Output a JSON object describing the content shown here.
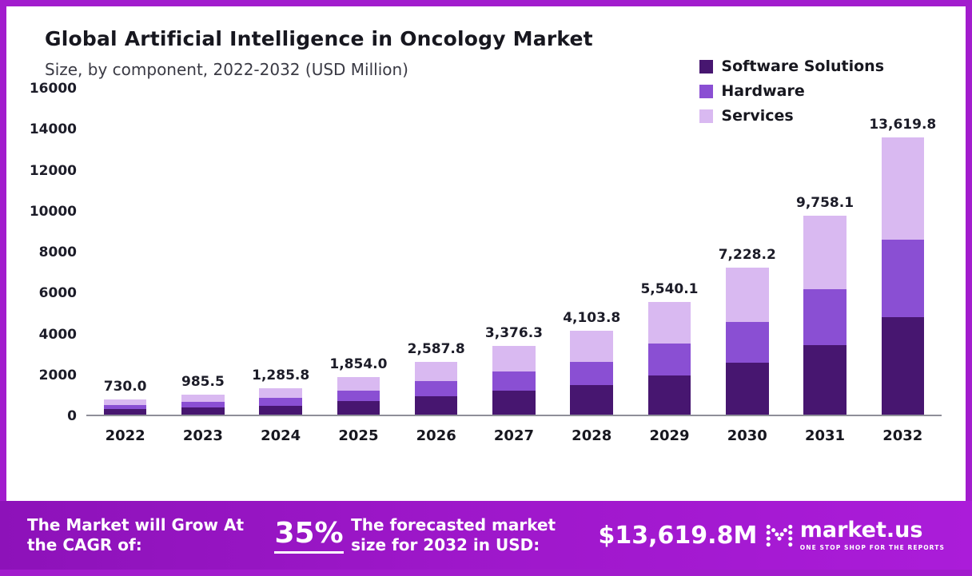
{
  "page": {
    "title": "Global Artificial Intelligence in Oncology Market",
    "subtitle": "Size, by component, 2022-2032 (USD Million)"
  },
  "legend": [
    {
      "label": "Software Solutions",
      "color": "#471670"
    },
    {
      "label": "Hardware",
      "color": "#8a4fd3"
    },
    {
      "label": "Services",
      "color": "#d9b9f1"
    }
  ],
  "chart_data": {
    "type": "bar",
    "stacked": true,
    "title": "Global Artificial Intelligence in Oncology Market Size, by component, 2022-2032 (USD Million)",
    "xlabel": "",
    "ylabel": "USD Million",
    "ylim": [
      0,
      16000
    ],
    "yticks": [
      0,
      2000,
      4000,
      6000,
      8000,
      10000,
      12000,
      14000,
      16000
    ],
    "grid": false,
    "legend_position": "top-right",
    "categories": [
      "2022",
      "2023",
      "2024",
      "2025",
      "2026",
      "2027",
      "2028",
      "2029",
      "2030",
      "2031",
      "2032"
    ],
    "series": [
      {
        "name": "Software Solutions",
        "color": "#471670",
        "values": [
          255.5,
          344.9,
          450.0,
          648.9,
          905.7,
          1181.7,
          1436.3,
          1939.0,
          2529.9,
          3415.3,
          4766.9
        ]
      },
      {
        "name": "Hardware",
        "color": "#8a4fd3",
        "values": [
          204.4,
          275.9,
          360.0,
          519.1,
          724.6,
          945.4,
          1149.1,
          1551.2,
          2023.9,
          2732.3,
          3813.5
        ]
      },
      {
        "name": "Services",
        "color": "#d9b9f1",
        "values": [
          270.1,
          364.7,
          475.8,
          686.0,
          957.5,
          1249.2,
          1518.4,
          2049.9,
          2674.4,
          3610.5,
          5039.4
        ]
      }
    ],
    "totals": [
      730.0,
      985.5,
      1285.8,
      1854.0,
      2587.8,
      3376.3,
      4103.8,
      5540.1,
      7228.2,
      9758.1,
      13619.8
    ],
    "total_labels": [
      "730.0",
      "985.5",
      "1,285.8",
      "1,854.0",
      "2,587.8",
      "3,376.3",
      "4,103.8",
      "5,540.1",
      "7,228.2",
      "9,758.1",
      "13,619.8"
    ]
  },
  "footer": {
    "cagr_label": "The Market will Grow At the CAGR of:",
    "cagr_value": "35%",
    "forecast_label": "The forecasted market size for 2032 in USD:",
    "forecast_value": "$13,619.8M",
    "brand": "market.us",
    "brand_tagline": "ONE STOP SHOP FOR THE REPORTS"
  }
}
